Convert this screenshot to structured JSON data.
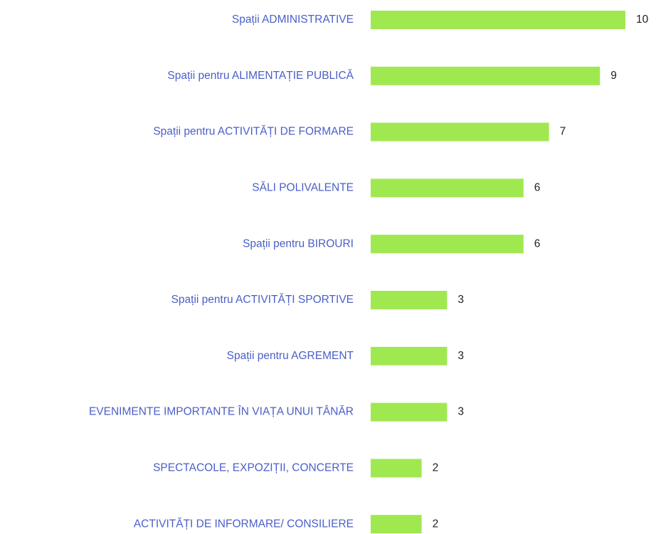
{
  "chart_data": {
    "type": "barh",
    "categories": [
      "Spații ADMINISTRATIVE",
      "Spații pentru ALIMENTAȚIE PUBLICĂ",
      "Spații pentru ACTIVITĂȚI DE FORMARE",
      "SĂLI POLIVALENTE",
      "Spații pentru BIROURI",
      "Spații pentru ACTIVITĂȚI SPORTIVE",
      "Spații pentru AGREMENT",
      "EVENIMENTE IMPORTANTE ÎN VIAȚA UNUI TÂNĂR",
      "SPECTACOLE, EXPOZIȚII, CONCERTE",
      "ACTIVITĂȚI DE INFORMARE/ CONSILIERE"
    ],
    "values": [
      10,
      9,
      7,
      6,
      6,
      3,
      3,
      3,
      2,
      2
    ],
    "color": "#a0e850",
    "xlim": [
      0,
      10
    ]
  }
}
